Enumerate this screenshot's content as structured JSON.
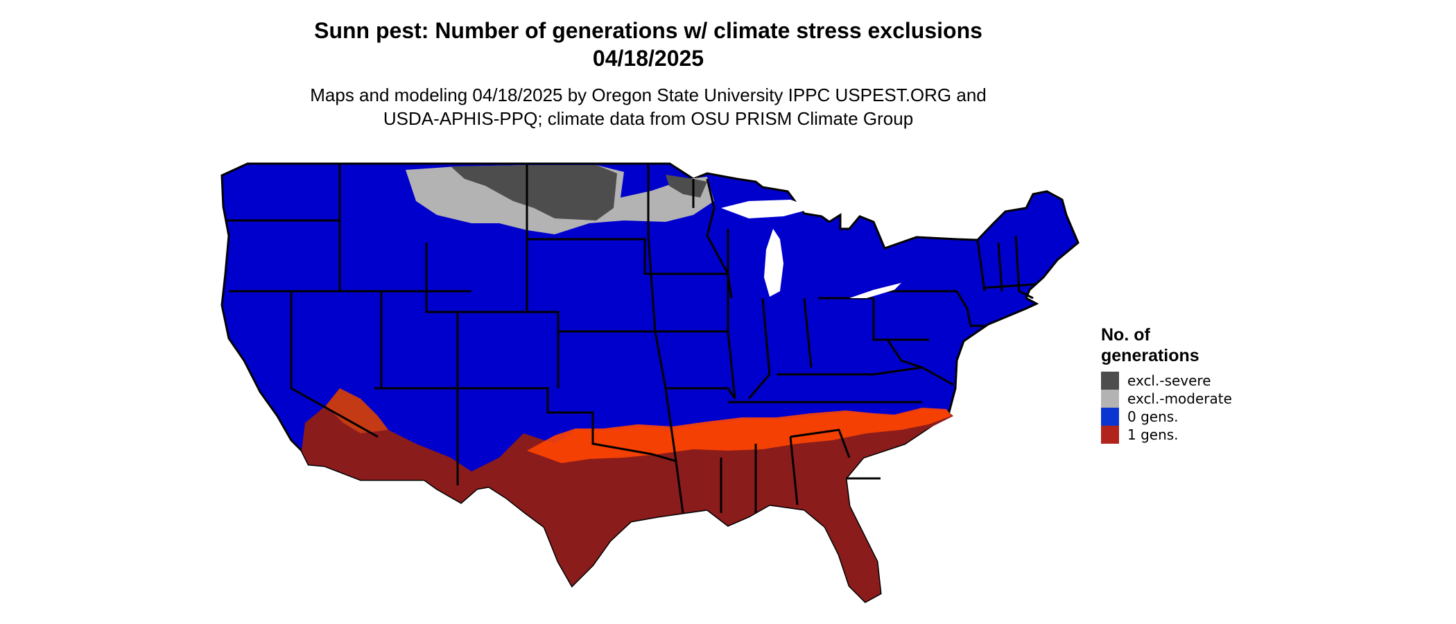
{
  "title": {
    "line1": "Sunn pest: Number of generations w/ climate stress exclusions",
    "line2": "04/18/2025"
  },
  "subtitle": {
    "line1": "Maps and modeling 04/18/2025 by Oregon State University IPPC USPEST.ORG and",
    "line2": "USDA-APHIS-PPQ; climate data from OSU PRISM Climate Group"
  },
  "legend": {
    "title_line1": "No. of",
    "title_line2": "generations",
    "items": [
      {
        "label": "excl.-severe",
        "color": "#4d4d4d"
      },
      {
        "label": "excl.-moderate",
        "color": "#b3b3b3"
      },
      {
        "label": "0 gens.",
        "color": "#0b35d0"
      },
      {
        "label": "1 gens.",
        "color": "#b0241b"
      }
    ]
  },
  "map_colors": {
    "zero_gens_fill": "#0000cc",
    "one_gen_dark": "#8a1c1c",
    "one_gen_mid": "#c43a14",
    "one_gen_light": "#ff4500",
    "excl_severe": "#4d4d4d",
    "excl_moderate": "#b3b3b3",
    "borders": "#000000"
  }
}
